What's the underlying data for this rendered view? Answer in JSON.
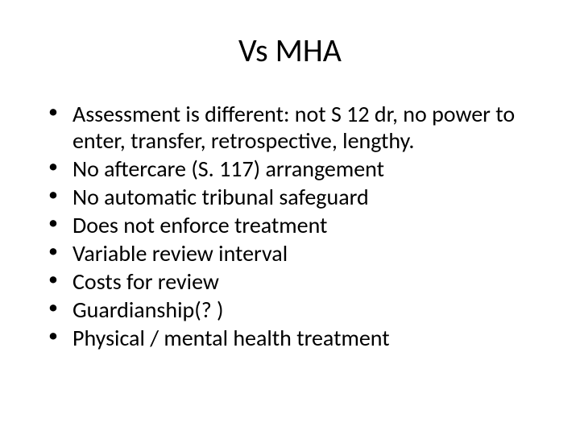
{
  "slide": {
    "title": "Vs MHA",
    "bullets": [
      "Assessment is different: not S 12 dr, no power to enter, transfer, retrospective, lengthy.",
      "No aftercare (S. 117) arrangement",
      "No automatic tribunal safeguard",
      "Does not enforce treatment",
      "Variable review interval",
      "Costs for review",
      "Guardianship(? )",
      "Physical / mental health treatment"
    ]
  },
  "styling": {
    "background_color": "#ffffff",
    "text_color": "#000000",
    "title_fontsize": 40,
    "body_fontsize": 28,
    "font_family": "Calibri"
  }
}
